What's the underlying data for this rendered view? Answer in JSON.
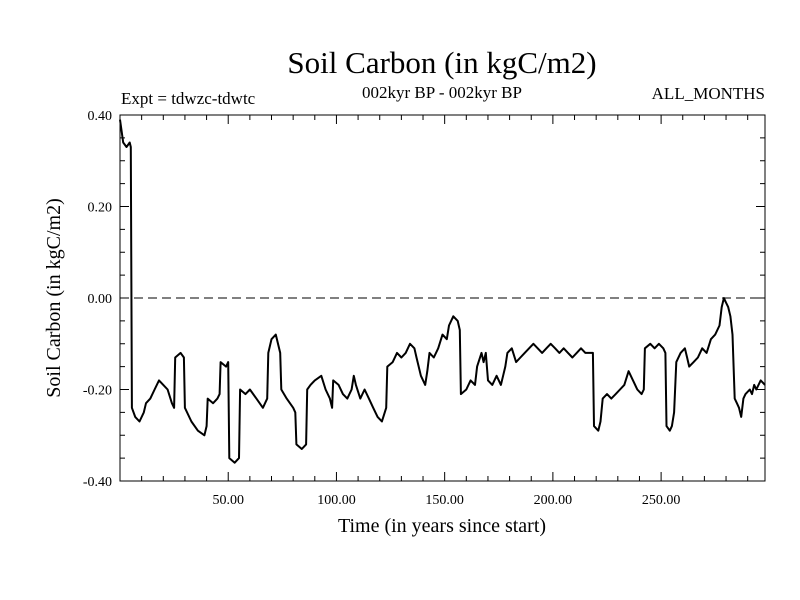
{
  "chart_data": {
    "type": "line",
    "title": "Soil Carbon (in kgC/m2)",
    "subtitle_left": "Expt = tdwzc-tdwtc",
    "subtitle_center": "002kyr BP - 002kyr BP",
    "subtitle_right": "ALL_MONTHS",
    "xlabel": "Time (in years since start)",
    "ylabel": "Soil Carbon (in kgC/m2)",
    "xlim": [
      0,
      298
    ],
    "ylim": [
      -0.4,
      0.4
    ],
    "xticks": [
      50,
      100,
      150,
      200,
      250
    ],
    "xtick_labels": [
      "50.00",
      "100.00",
      "150.00",
      "200.00",
      "250.00"
    ],
    "yticks": [
      -0.4,
      -0.2,
      0.0,
      0.2,
      0.4
    ],
    "ytick_labels": [
      "-0.40",
      "-0.20",
      "0.00",
      "0.20",
      "0.40"
    ],
    "reference_line": {
      "y": 0.0,
      "style": "dashed"
    },
    "series": [
      {
        "name": "Soil Carbon",
        "color": "#000000",
        "points": [
          [
            0,
            0.39
          ],
          [
            1.5,
            0.34
          ],
          [
            3,
            0.33
          ],
          [
            4.5,
            0.34
          ],
          [
            5,
            0.33
          ],
          [
            5.5,
            -0.24
          ],
          [
            7,
            -0.26
          ],
          [
            9,
            -0.27
          ],
          [
            11,
            -0.25
          ],
          [
            12,
            -0.23
          ],
          [
            14,
            -0.22
          ],
          [
            16,
            -0.2
          ],
          [
            18,
            -0.18
          ],
          [
            20,
            -0.19
          ],
          [
            22,
            -0.2
          ],
          [
            24,
            -0.23
          ],
          [
            25,
            -0.24
          ],
          [
            25.5,
            -0.13
          ],
          [
            28,
            -0.12
          ],
          [
            29.5,
            -0.13
          ],
          [
            30,
            -0.24
          ],
          [
            33,
            -0.27
          ],
          [
            36,
            -0.29
          ],
          [
            39,
            -0.3
          ],
          [
            40,
            -0.28
          ],
          [
            40.5,
            -0.22
          ],
          [
            43,
            -0.23
          ],
          [
            45,
            -0.22
          ],
          [
            46,
            -0.21
          ],
          [
            46.5,
            -0.14
          ],
          [
            49,
            -0.15
          ],
          [
            50,
            -0.14
          ],
          [
            50.5,
            -0.35
          ],
          [
            53,
            -0.36
          ],
          [
            55,
            -0.35
          ],
          [
            55.5,
            -0.2
          ],
          [
            58,
            -0.21
          ],
          [
            60,
            -0.2
          ],
          [
            63,
            -0.22
          ],
          [
            66,
            -0.24
          ],
          [
            68,
            -0.22
          ],
          [
            68.5,
            -0.12
          ],
          [
            70,
            -0.09
          ],
          [
            72,
            -0.08
          ],
          [
            74,
            -0.12
          ],
          [
            74.5,
            -0.2
          ],
          [
            77,
            -0.22
          ],
          [
            80,
            -0.24
          ],
          [
            81,
            -0.25
          ],
          [
            81.5,
            -0.32
          ],
          [
            84,
            -0.33
          ],
          [
            86,
            -0.32
          ],
          [
            86.5,
            -0.2
          ],
          [
            88,
            -0.19
          ],
          [
            90,
            -0.18
          ],
          [
            93,
            -0.17
          ],
          [
            95,
            -0.2
          ],
          [
            97,
            -0.22
          ],
          [
            98,
            -0.24
          ],
          [
            98.5,
            -0.18
          ],
          [
            101,
            -0.19
          ],
          [
            103,
            -0.21
          ],
          [
            105,
            -0.22
          ],
          [
            107,
            -0.2
          ],
          [
            108,
            -0.17
          ],
          [
            109,
            -0.19
          ],
          [
            111,
            -0.22
          ],
          [
            113,
            -0.2
          ],
          [
            115,
            -0.22
          ],
          [
            117,
            -0.24
          ],
          [
            119,
            -0.26
          ],
          [
            121,
            -0.27
          ],
          [
            123,
            -0.24
          ],
          [
            123.5,
            -0.15
          ],
          [
            126,
            -0.14
          ],
          [
            128,
            -0.12
          ],
          [
            130,
            -0.13
          ],
          [
            132,
            -0.12
          ],
          [
            134,
            -0.1
          ],
          [
            136,
            -0.11
          ],
          [
            137,
            -0.13
          ],
          [
            139,
            -0.17
          ],
          [
            141,
            -0.19
          ],
          [
            142,
            -0.16
          ],
          [
            143,
            -0.12
          ],
          [
            145,
            -0.13
          ],
          [
            147,
            -0.11
          ],
          [
            149,
            -0.08
          ],
          [
            151,
            -0.09
          ],
          [
            152,
            -0.06
          ],
          [
            154,
            -0.04
          ],
          [
            156,
            -0.05
          ],
          [
            157,
            -0.07
          ],
          [
            157.5,
            -0.21
          ],
          [
            160,
            -0.2
          ],
          [
            162,
            -0.18
          ],
          [
            164,
            -0.19
          ],
          [
            165,
            -0.15
          ],
          [
            167,
            -0.12
          ],
          [
            168,
            -0.14
          ],
          [
            169,
            -0.12
          ],
          [
            170,
            -0.18
          ],
          [
            172,
            -0.19
          ],
          [
            174,
            -0.17
          ],
          [
            176,
            -0.19
          ],
          [
            177,
            -0.17
          ],
          [
            178,
            -0.15
          ],
          [
            179,
            -0.12
          ],
          [
            181,
            -0.11
          ],
          [
            183,
            -0.14
          ],
          [
            185,
            -0.13
          ],
          [
            187,
            -0.12
          ],
          [
            189,
            -0.11
          ],
          [
            191,
            -0.1
          ],
          [
            193,
            -0.11
          ],
          [
            195,
            -0.12
          ],
          [
            197,
            -0.11
          ],
          [
            199,
            -0.1
          ],
          [
            201,
            -0.11
          ],
          [
            203,
            -0.12
          ],
          [
            205,
            -0.11
          ],
          [
            207,
            -0.12
          ],
          [
            209,
            -0.13
          ],
          [
            211,
            -0.12
          ],
          [
            213,
            -0.11
          ],
          [
            215,
            -0.12
          ],
          [
            217,
            -0.12
          ],
          [
            218.5,
            -0.12
          ],
          [
            219,
            -0.28
          ],
          [
            221,
            -0.29
          ],
          [
            222,
            -0.27
          ],
          [
            223,
            -0.22
          ],
          [
            225,
            -0.21
          ],
          [
            227,
            -0.22
          ],
          [
            229,
            -0.21
          ],
          [
            231,
            -0.2
          ],
          [
            233,
            -0.19
          ],
          [
            235,
            -0.16
          ],
          [
            237,
            -0.18
          ],
          [
            239,
            -0.2
          ],
          [
            241,
            -0.21
          ],
          [
            242,
            -0.2
          ],
          [
            242.5,
            -0.11
          ],
          [
            245,
            -0.1
          ],
          [
            247,
            -0.11
          ],
          [
            249,
            -0.1
          ],
          [
            251,
            -0.11
          ],
          [
            252,
            -0.12
          ],
          [
            252.5,
            -0.28
          ],
          [
            254,
            -0.29
          ],
          [
            255,
            -0.28
          ],
          [
            256,
            -0.25
          ],
          [
            257,
            -0.14
          ],
          [
            259,
            -0.12
          ],
          [
            261,
            -0.11
          ],
          [
            262,
            -0.13
          ],
          [
            263,
            -0.15
          ],
          [
            265,
            -0.14
          ],
          [
            267,
            -0.13
          ],
          [
            269,
            -0.11
          ],
          [
            271,
            -0.12
          ],
          [
            273,
            -0.09
          ],
          [
            275,
            -0.08
          ],
          [
            277,
            -0.06
          ],
          [
            278,
            -0.02
          ],
          [
            279,
            0.0
          ],
          [
            280,
            -0.01
          ],
          [
            281,
            -0.02
          ],
          [
            282,
            -0.04
          ],
          [
            283,
            -0.08
          ],
          [
            284,
            -0.22
          ],
          [
            285,
            -0.23
          ],
          [
            286,
            -0.24
          ],
          [
            287,
            -0.26
          ],
          [
            288,
            -0.22
          ],
          [
            289,
            -0.21
          ],
          [
            291,
            -0.2
          ],
          [
            292,
            -0.21
          ],
          [
            293,
            -0.19
          ],
          [
            294,
            -0.2
          ],
          [
            296,
            -0.18
          ],
          [
            298,
            -0.19
          ]
        ]
      }
    ]
  }
}
